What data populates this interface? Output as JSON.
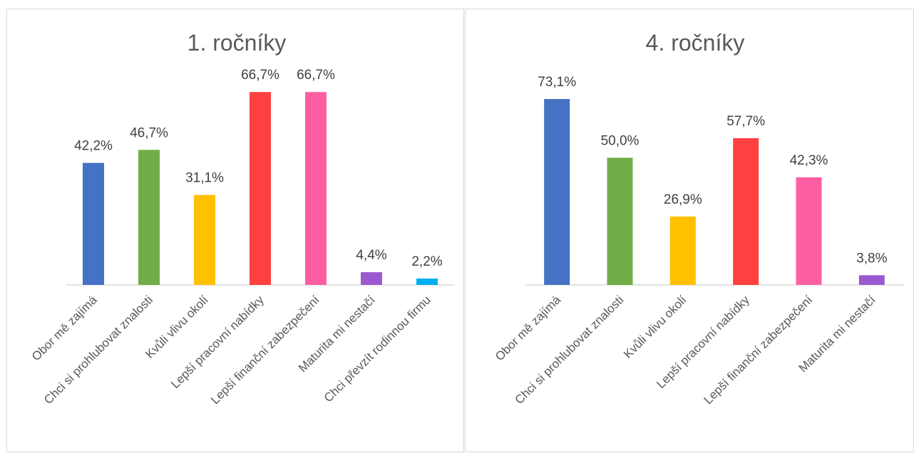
{
  "chart_data": [
    {
      "type": "bar",
      "title": "1. ročníky",
      "categories": [
        "Obor mě zajímá",
        "Chci si prohlubovat znalosti",
        "Kvůli vlivu okolí",
        "Lepší pracovní nabídky",
        "Lepší finanční zabezpečení",
        "Maturita mi nestačí",
        "Chci převzít rodinnou firmu"
      ],
      "values": [
        42.2,
        46.7,
        31.1,
        66.7,
        66.7,
        4.4,
        2.2
      ],
      "value_labels": [
        "42,2%",
        "46,7%",
        "31,1%",
        "66,7%",
        "66,7%",
        "4,4%",
        "2,2%"
      ],
      "colors": [
        "#4472C4",
        "#70AD47",
        "#FFC000",
        "#FF4040",
        "#FF5FA2",
        "#9B59D0",
        "#00B0F0"
      ],
      "ylim": [
        0,
        67
      ],
      "grid": false,
      "legend": "none"
    },
    {
      "type": "bar",
      "title": "4. ročníky",
      "categories": [
        "Obor mě zajímá",
        "Chci si prohlubovat znalosti",
        "Kvůli vlivu okolí",
        "Lepší pracovní nabídky",
        "Lepší finanční zabezpečení",
        "Maturita mi nestačí"
      ],
      "values": [
        73.1,
        50.0,
        26.9,
        57.7,
        42.3,
        3.8
      ],
      "value_labels": [
        "73,1%",
        "50,0%",
        "26,9%",
        "57,7%",
        "42,3%",
        "3,8%"
      ],
      "colors": [
        "#4472C4",
        "#70AD47",
        "#FFC000",
        "#FF4040",
        "#FF5FA2",
        "#9B59D0"
      ],
      "ylim": [
        0,
        73.1
      ],
      "grid": false,
      "legend": "none"
    }
  ]
}
